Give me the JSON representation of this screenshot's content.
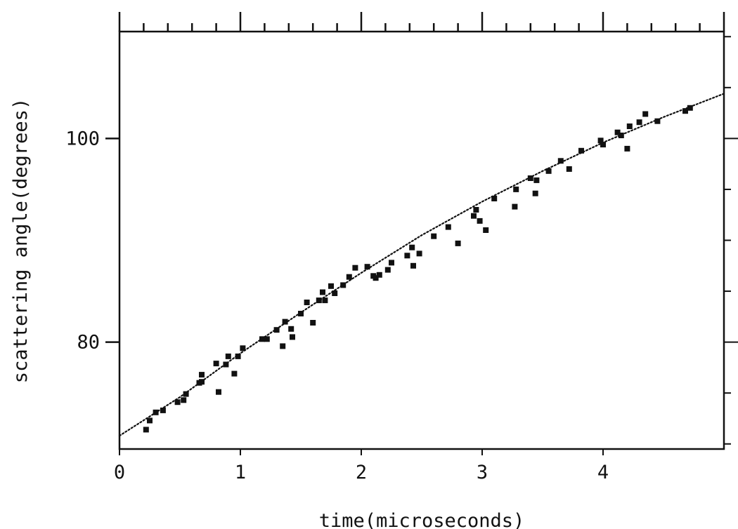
{
  "chart_data": {
    "type": "scatter",
    "title": "",
    "xlabel": "time(microseconds)",
    "ylabel": "scattering angle(degrees)",
    "xlim": [
      0,
      5
    ],
    "ylim": [
      69.5,
      110.5
    ],
    "x_ticks": [
      0,
      1,
      2,
      3,
      4
    ],
    "x_tick_labels": [
      "0",
      "1",
      "2",
      "3",
      "4"
    ],
    "y_ticks": [
      80,
      100
    ],
    "y_tick_labels": [
      "80",
      "100"
    ],
    "grid": false,
    "legend": "none",
    "colors": {
      "points": "#111111",
      "fit": "#111111",
      "axes": "#111111"
    },
    "series": [
      {
        "type": "scatter",
        "points": [
          [
            0.22,
            71.4
          ],
          [
            0.25,
            72.3
          ],
          [
            0.3,
            73.1
          ],
          [
            0.36,
            73.3
          ],
          [
            0.48,
            74.1
          ],
          [
            0.53,
            74.3
          ],
          [
            0.55,
            74.9
          ],
          [
            0.66,
            76.0
          ],
          [
            0.68,
            76.8
          ],
          [
            0.68,
            76.1
          ],
          [
            0.8,
            77.9
          ],
          [
            0.82,
            75.1
          ],
          [
            0.88,
            77.8
          ],
          [
            0.9,
            78.6
          ],
          [
            0.95,
            76.9
          ],
          [
            0.98,
            78.6
          ],
          [
            1.02,
            79.4
          ],
          [
            1.18,
            80.3
          ],
          [
            1.22,
            80.3
          ],
          [
            1.3,
            81.2
          ],
          [
            1.35,
            79.6
          ],
          [
            1.37,
            82.0
          ],
          [
            1.42,
            81.3
          ],
          [
            1.43,
            80.5
          ],
          [
            1.5,
            82.8
          ],
          [
            1.55,
            83.9
          ],
          [
            1.6,
            81.9
          ],
          [
            1.65,
            84.1
          ],
          [
            1.68,
            84.9
          ],
          [
            1.7,
            84.1
          ],
          [
            1.75,
            85.5
          ],
          [
            1.78,
            84.8
          ],
          [
            1.85,
            85.6
          ],
          [
            1.9,
            86.4
          ],
          [
            1.95,
            87.3
          ],
          [
            2.05,
            87.4
          ],
          [
            2.1,
            86.5
          ],
          [
            2.12,
            86.3
          ],
          [
            2.15,
            86.6
          ],
          [
            2.22,
            87.1
          ],
          [
            2.25,
            87.8
          ],
          [
            2.38,
            88.5
          ],
          [
            2.42,
            89.3
          ],
          [
            2.43,
            87.5
          ],
          [
            2.48,
            88.7
          ],
          [
            2.6,
            90.4
          ],
          [
            2.72,
            91.3
          ],
          [
            2.8,
            89.7
          ],
          [
            2.93,
            92.4
          ],
          [
            2.95,
            93.0
          ],
          [
            2.98,
            91.9
          ],
          [
            3.03,
            91.0
          ],
          [
            3.1,
            94.1
          ],
          [
            3.27,
            93.3
          ],
          [
            3.28,
            95.0
          ],
          [
            3.4,
            96.1
          ],
          [
            3.44,
            94.6
          ],
          [
            3.45,
            95.9
          ],
          [
            3.55,
            96.8
          ],
          [
            3.65,
            97.8
          ],
          [
            3.72,
            97.0
          ],
          [
            3.82,
            98.8
          ],
          [
            3.98,
            99.8
          ],
          [
            4.0,
            99.4
          ],
          [
            4.12,
            100.6
          ],
          [
            4.15,
            100.3
          ],
          [
            4.2,
            99.0
          ],
          [
            4.22,
            101.2
          ],
          [
            4.3,
            101.6
          ],
          [
            4.35,
            102.4
          ],
          [
            4.45,
            101.7
          ],
          [
            4.68,
            102.7
          ],
          [
            4.72,
            103.0
          ]
        ]
      },
      {
        "type": "line",
        "style": "dotted",
        "points": [
          [
            0,
            70.8
          ],
          [
            0.5,
            74.6
          ],
          [
            1.0,
            78.9
          ],
          [
            1.5,
            82.9
          ],
          [
            2.0,
            86.8
          ],
          [
            2.5,
            90.5
          ],
          [
            3.0,
            93.8
          ],
          [
            3.5,
            96.8
          ],
          [
            4.0,
            99.6
          ],
          [
            4.5,
            102.1
          ],
          [
            5.0,
            104.4
          ]
        ]
      }
    ]
  }
}
